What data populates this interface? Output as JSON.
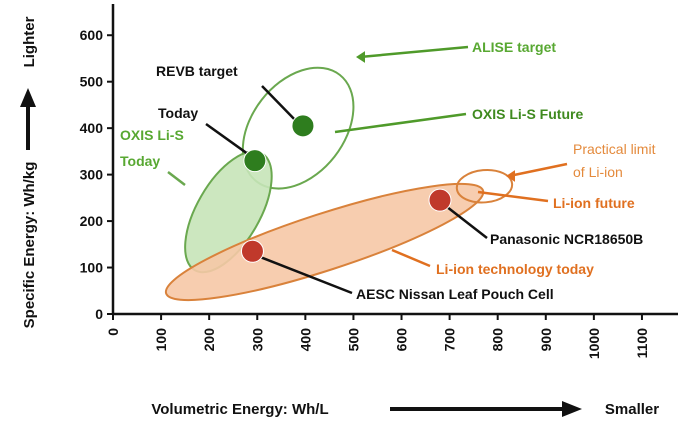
{
  "chart_data": {
    "type": "scatter",
    "title": "",
    "xlabel": "Volumetric Energy: Wh/L",
    "xlabel_suffix": "Smaller",
    "ylabel": "Specific Energy: Wh/kg",
    "ylabel_suffix": "Lighter",
    "xlim": [
      0,
      1150
    ],
    "ylim": [
      0,
      650
    ],
    "x_ticks": [
      0,
      100,
      200,
      300,
      400,
      500,
      600,
      700,
      800,
      900,
      1000,
      1100
    ],
    "y_ticks": [
      0,
      100,
      200,
      300,
      400,
      500,
      600
    ],
    "grid": false,
    "regions": [
      {
        "name": "ALISE target",
        "x_range": [
          270,
          500
        ],
        "y_range": [
          270,
          530
        ],
        "color": "#6aa84f",
        "fill": "none"
      },
      {
        "name": "OXIS Li-S Today",
        "x_range": [
          150,
          330
        ],
        "y_range": [
          90,
          350
        ],
        "color": "#6aa84f",
        "fill": "#c7e4b8"
      },
      {
        "name": "Li-ion technology today",
        "x_range": [
          110,
          770
        ],
        "y_range": [
          30,
          280
        ],
        "color": "#d9823b",
        "fill": "#f6c8a6"
      },
      {
        "name": "Practical limit of Li-ion",
        "x_range": [
          715,
          830
        ],
        "y_range": [
          240,
          310
        ],
        "color": "#d9823b",
        "fill": "none"
      }
    ],
    "points": [
      {
        "name": "REVB target",
        "x": 395,
        "y": 405,
        "color": "#2e7d1e"
      },
      {
        "name": "Today",
        "x": 295,
        "y": 330,
        "color": "#2e7d1e"
      },
      {
        "name": "Panasonic NCR18650B",
        "x": 680,
        "y": 245,
        "color": "#c0392b"
      },
      {
        "name": "AESC Nissan Leaf Pouch Cell",
        "x": 290,
        "y": 135,
        "color": "#c0392b"
      }
    ],
    "annotations": [
      {
        "text": "REVB target",
        "style": "black"
      },
      {
        "text": "Today",
        "style": "black"
      },
      {
        "text": "OXIS Li-S",
        "style": "green-light"
      },
      {
        "text": "Today",
        "style": "green-light"
      },
      {
        "text": "ALISE target",
        "style": "green-light"
      },
      {
        "text": "OXIS Li-S Future",
        "style": "green"
      },
      {
        "text": "Practical limit",
        "style": "orange-light"
      },
      {
        "text": "of Li-ion",
        "style": "orange-light"
      },
      {
        "text": "Li-ion future",
        "style": "orange"
      },
      {
        "text": "Panasonic NCR18650B",
        "style": "black"
      },
      {
        "text": "Li-ion technology today",
        "style": "orange"
      },
      {
        "text": "AESC Nissan Leaf Pouch Cell",
        "style": "black"
      }
    ]
  }
}
